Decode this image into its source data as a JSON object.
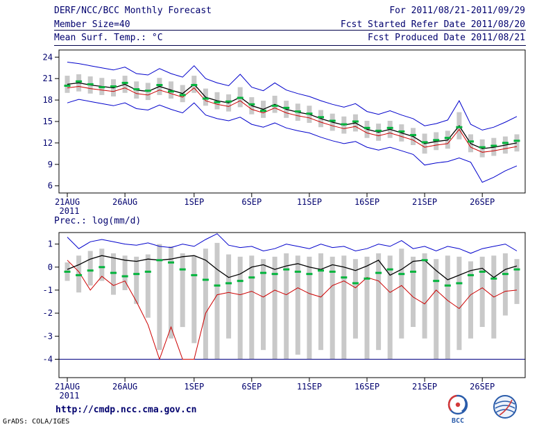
{
  "header": {
    "title": "DERF/NCC/BCC Monthly Forecast",
    "member_size": "Member Size=40",
    "top_var_label": "Mean Surf. Temp.: °C",
    "for_range": "For 2011/08/21-2011/09/29",
    "fcst_ref": "Fcst Started Refer Date 2011/08/20",
    "fcst_produced": "Fcst Produced Date 2011/08/21"
  },
  "panels": {
    "precip_label": "Prec.: log(mm/d)"
  },
  "footer": {
    "url": "http://cmdp.ncc.cma.gov.cn",
    "credit": "GrADS: COLA/IGES",
    "logos": [
      {
        "id": "bcc",
        "caption": "BCC"
      },
      {
        "id": "cma",
        "caption": ""
      }
    ]
  },
  "colors": {
    "text": "#00006e",
    "frame": "#000000",
    "background": "#ffffff",
    "bar": "#c9c9c9",
    "envelope_blue": "#0000cc",
    "mean_black": "#000000",
    "red_line": "#cc0000",
    "green_dash": "#00b43c",
    "floor_navy": "#000080"
  },
  "chart_data": [
    {
      "type": "line",
      "title": "Mean Surf. Temp.: °C",
      "ylim": [
        5,
        25
      ],
      "yticks": [
        6,
        9,
        12,
        15,
        18,
        21,
        24
      ],
      "x_count": 40,
      "x_tick_indices": [
        0,
        5,
        11,
        16,
        21,
        26,
        31,
        36
      ],
      "x_tick_labels": [
        "21AUG",
        "26AUG",
        "1SEP",
        "6SEP",
        "11SEP",
        "16SEP",
        "21SEP",
        "26SEP"
      ],
      "x_year_label": "2011",
      "bars": {
        "color": "#c9c9c9",
        "low": [
          19.0,
          19.2,
          18.9,
          18.7,
          18.5,
          19.0,
          18.2,
          18.0,
          18.7,
          18.2,
          17.7,
          19.0,
          17.2,
          16.7,
          16.4,
          17.0,
          16.0,
          15.5,
          16.2,
          15.5,
          15.1,
          14.8,
          14.2,
          13.7,
          13.3,
          13.6,
          12.7,
          12.3,
          12.7,
          12.2,
          11.7,
          10.5,
          11.0,
          11.2,
          12.5,
          10.7,
          10.0,
          10.2,
          10.5,
          10.8
        ],
        "high": [
          21.4,
          21.6,
          21.3,
          21.1,
          20.9,
          21.4,
          20.6,
          20.4,
          21.1,
          20.6,
          20.1,
          21.4,
          19.6,
          19.1,
          18.8,
          19.8,
          18.4,
          17.9,
          18.6,
          17.9,
          17.5,
          17.2,
          16.6,
          16.1,
          15.7,
          16.0,
          15.1,
          14.7,
          15.1,
          14.6,
          14.1,
          13.3,
          13.5,
          13.7,
          16.3,
          13.2,
          12.5,
          12.7,
          12.9,
          13.2
        ]
      },
      "series": [
        {
          "name": "blue-upper",
          "color": "#0000cc",
          "width": 1,
          "values": [
            23.3,
            23.1,
            22.8,
            22.5,
            22.2,
            22.6,
            21.7,
            21.5,
            22.4,
            21.7,
            21.2,
            22.8,
            21.0,
            20.4,
            20.0,
            21.6,
            19.8,
            19.3,
            20.4,
            19.4,
            18.9,
            18.5,
            17.9,
            17.4,
            17.0,
            17.5,
            16.4,
            16.0,
            16.5,
            15.9,
            15.4,
            14.4,
            14.7,
            15.2,
            17.9,
            14.6,
            13.8,
            14.2,
            14.9,
            15.7
          ]
        },
        {
          "name": "blue-lower",
          "color": "#0000cc",
          "width": 1,
          "values": [
            17.6,
            18.1,
            17.8,
            17.5,
            17.2,
            17.6,
            16.8,
            16.6,
            17.3,
            16.7,
            16.2,
            17.6,
            15.9,
            15.4,
            15.1,
            15.6,
            14.6,
            14.2,
            14.8,
            14.1,
            13.7,
            13.4,
            12.8,
            12.3,
            11.9,
            12.2,
            11.4,
            11.0,
            11.4,
            10.9,
            10.4,
            8.9,
            9.2,
            9.4,
            9.9,
            9.3,
            6.5,
            7.2,
            8.1,
            8.8
          ]
        },
        {
          "name": "red-line",
          "color": "#cc0000",
          "width": 1,
          "values": [
            19.7,
            19.9,
            19.6,
            19.4,
            19.2,
            19.7,
            18.9,
            18.7,
            19.4,
            18.9,
            18.4,
            19.7,
            17.9,
            17.4,
            17.1,
            17.9,
            16.7,
            16.2,
            16.9,
            16.2,
            15.8,
            15.5,
            14.9,
            14.4,
            14.0,
            14.3,
            13.4,
            13.0,
            13.4,
            12.9,
            12.4,
            11.4,
            11.7,
            11.9,
            13.9,
            11.4,
            10.7,
            10.9,
            11.2,
            11.5
          ]
        },
        {
          "name": "black-mean",
          "color": "#000000",
          "width": 1.3,
          "values": [
            20.2,
            20.4,
            20.1,
            19.9,
            19.7,
            20.2,
            19.4,
            19.2,
            19.9,
            19.4,
            18.9,
            20.2,
            18.4,
            17.9,
            17.6,
            18.4,
            17.2,
            16.7,
            17.4,
            16.7,
            16.3,
            16.0,
            15.4,
            14.9,
            14.5,
            14.8,
            13.9,
            13.5,
            13.9,
            13.4,
            12.9,
            11.9,
            12.2,
            12.4,
            14.4,
            11.9,
            11.2,
            11.4,
            11.7,
            12.0
          ]
        }
      ],
      "markers": {
        "name": "green-dashes",
        "color": "#00b43c",
        "values": [
          20.0,
          20.6,
          20.2,
          19.8,
          19.9,
          20.4,
          19.5,
          19.3,
          20.1,
          19.2,
          18.7,
          20.1,
          18.2,
          17.7,
          17.8,
          18.3,
          17.4,
          16.5,
          17.2,
          16.9,
          16.4,
          16.1,
          15.6,
          15.1,
          14.6,
          15.0,
          14.1,
          13.7,
          14.1,
          13.6,
          13.1,
          12.1,
          12.4,
          12.7,
          14.2,
          12.2,
          11.4,
          11.6,
          12.0,
          12.3
        ]
      }
    },
    {
      "type": "line",
      "title": "Prec.: log(mm/d)",
      "ylim": [
        -4.8,
        1.5
      ],
      "yticks": [
        -4,
        -3,
        -2,
        -1,
        0,
        1
      ],
      "x_count": 40,
      "x_tick_indices": [
        0,
        5,
        11,
        16,
        21,
        26,
        31,
        36
      ],
      "x_tick_labels": [
        "21AUG",
        "26AUG",
        "1SEP",
        "6SEP",
        "11SEP",
        "16SEP",
        "21SEP",
        "26SEP"
      ],
      "x_year_label": "2011",
      "bars": {
        "color": "#c9c9c9",
        "low": [
          -0.6,
          -1.1,
          -0.8,
          -0.6,
          -1.2,
          -1.0,
          -1.6,
          -2.2,
          -3.6,
          -3.1,
          -2.6,
          -3.3,
          -4.0,
          -4.0,
          -3.1,
          -4.0,
          -4.0,
          -3.6,
          -4.0,
          -4.0,
          -3.8,
          -4.0,
          -3.6,
          -4.0,
          -4.0,
          -3.1,
          -4.0,
          -3.6,
          -4.0,
          -3.1,
          -2.6,
          -3.1,
          -4.0,
          -4.0,
          -3.6,
          -3.1,
          -2.6,
          -3.1,
          -2.1,
          -1.6
        ],
        "high": [
          0.2,
          0.5,
          0.7,
          0.8,
          0.6,
          0.5,
          0.45,
          0.55,
          1.0,
          0.9,
          0.6,
          0.5,
          0.8,
          1.05,
          0.55,
          0.45,
          0.5,
          0.35,
          0.45,
          0.6,
          0.5,
          0.45,
          0.6,
          0.45,
          0.5,
          0.35,
          0.45,
          0.6,
          0.5,
          0.8,
          0.45,
          0.6,
          0.35,
          0.5,
          0.45,
          0.25,
          0.45,
          0.5,
          0.6,
          0.35
        ]
      },
      "series": [
        {
          "name": "blue-upper",
          "color": "#0000cc",
          "width": 1,
          "values": [
            1.3,
            0.8,
            1.1,
            1.2,
            1.1,
            1.0,
            0.95,
            1.05,
            0.9,
            0.85,
            1.0,
            0.9,
            1.2,
            1.45,
            0.95,
            0.85,
            0.9,
            0.7,
            0.8,
            1.0,
            0.9,
            0.8,
            1.0,
            0.85,
            0.9,
            0.7,
            0.8,
            1.0,
            0.9,
            1.15,
            0.8,
            0.9,
            0.7,
            0.9,
            0.8,
            0.6,
            0.8,
            0.9,
            1.0,
            0.7
          ]
        },
        {
          "name": "navy-floor",
          "color": "#000080",
          "width": 1,
          "const": -4
        },
        {
          "name": "red-line",
          "color": "#cc0000",
          "width": 1,
          "values": [
            0.3,
            -0.2,
            -1.0,
            -0.4,
            -0.8,
            -0.6,
            -1.5,
            -2.5,
            -4.0,
            -2.6,
            -4.0,
            -4.0,
            -2.0,
            -1.2,
            -1.1,
            -1.2,
            -1.05,
            -1.3,
            -1.0,
            -1.2,
            -0.9,
            -1.15,
            -1.3,
            -0.8,
            -0.6,
            -0.9,
            -0.45,
            -0.6,
            -1.1,
            -0.8,
            -1.3,
            -1.6,
            -1.0,
            -1.45,
            -1.8,
            -1.2,
            -0.9,
            -1.3,
            -1.05,
            -1.0
          ]
        },
        {
          "name": "black-mean",
          "color": "#000000",
          "width": 1.3,
          "values": [
            -0.1,
            0.1,
            0.35,
            0.5,
            0.4,
            0.3,
            0.25,
            0.35,
            0.3,
            0.35,
            0.45,
            0.5,
            0.3,
            -0.1,
            -0.45,
            -0.3,
            0.0,
            0.1,
            -0.1,
            0.05,
            0.15,
            0.0,
            -0.1,
            0.1,
            0.0,
            -0.15,
            0.05,
            0.3,
            -0.35,
            -0.1,
            0.25,
            0.3,
            -0.15,
            -0.55,
            -0.35,
            -0.15,
            -0.05,
            -0.45,
            -0.1,
            0.05
          ]
        }
      ],
      "markers": {
        "name": "green-dashes",
        "color": "#00b43c",
        "values": [
          -0.2,
          -0.35,
          -0.15,
          0.0,
          -0.25,
          -0.4,
          -0.3,
          -0.2,
          0.3,
          0.2,
          -0.1,
          -0.35,
          -0.55,
          -0.8,
          -0.7,
          -0.6,
          -0.45,
          -0.25,
          -0.3,
          -0.1,
          -0.2,
          -0.3,
          -0.15,
          -0.2,
          -0.45,
          -0.7,
          -0.5,
          -0.25,
          -0.1,
          -0.3,
          -0.2,
          0.3,
          -0.6,
          -0.8,
          -0.7,
          -0.35,
          -0.2,
          -0.5,
          -0.3,
          -0.1
        ]
      }
    }
  ]
}
